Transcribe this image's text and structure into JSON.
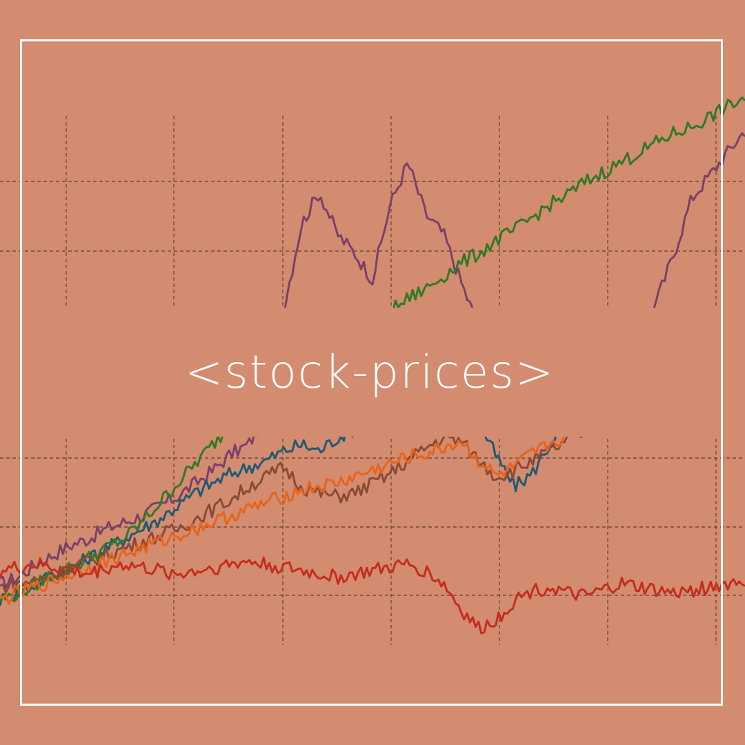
{
  "title": "<stock-prices>",
  "colors": {
    "background": "#d38c6f",
    "frame": "#ffffff",
    "title_text": "#ffffff",
    "grid": "#5a3a2c"
  },
  "chart_data": {
    "type": "line",
    "title": "",
    "xlabel": "",
    "ylabel": "",
    "grid": true,
    "legend": "none",
    "series": [
      {
        "color": "#7b3f6b",
        "values": [
          10,
          14,
          22,
          28,
          34,
          38,
          44,
          48,
          52,
          58,
          64,
          72,
          80,
          90,
          96,
          112,
          180,
          232,
          252,
          226,
          214,
          198,
          244,
          270,
          238,
          226,
          196,
          168,
          140,
          120,
          112,
          108,
          110,
          134,
          160,
          176,
          168,
          184,
          214,
          248,
          262,
          276,
          290
        ]
      },
      {
        "color": "#1f5a73",
        "values": [
          0,
          4,
          10,
          16,
          20,
          26,
          32,
          38,
          44,
          50,
          58,
          66,
          72,
          78,
          82,
          86,
          92,
          96,
          92,
          100,
          106,
          110,
          114,
          118,
          124,
          132,
          128,
          110,
          88,
          70,
          78,
          96,
          108,
          120,
          128,
          136,
          142,
          146,
          150,
          156,
          164,
          170,
          174
        ]
      },
      {
        "color": "#2e7a26",
        "values": [
          0,
          4,
          10,
          16,
          20,
          26,
          32,
          38,
          48,
          60,
          72,
          84,
          96,
          108,
          118,
          128,
          138,
          146,
          150,
          156,
          162,
          170,
          178,
          186,
          192,
          200,
          208,
          214,
          222,
          228,
          236,
          244,
          250,
          258,
          264,
          270,
          276,
          282,
          288,
          292,
          298,
          304,
          310
        ]
      },
      {
        "color": "#8a4a36",
        "values": [
          8,
          10,
          12,
          16,
          20,
          24,
          28,
          32,
          36,
          40,
          44,
          50,
          56,
          62,
          70,
          76,
          82,
          70,
          66,
          64,
          66,
          72,
          78,
          86,
          94,
          100,
          98,
          86,
          76,
          80,
          86,
          92,
          98,
          104,
          110,
          118,
          124,
          130,
          134,
          136,
          140,
          144,
          148
        ]
      },
      {
        "color": "#e8631c",
        "values": [
          0,
          4,
          8,
          12,
          16,
          20,
          24,
          28,
          32,
          36,
          40,
          44,
          48,
          52,
          56,
          60,
          64,
          68,
          70,
          72,
          76,
          80,
          84,
          88,
          90,
          94,
          98,
          86,
          76,
          82,
          90,
          96,
          102,
          106,
          110,
          116,
          112,
          106,
          108,
          112,
          118,
          124,
          130
        ]
      },
      {
        "color": "#c42d1f",
        "values": [
          18,
          20,
          22,
          20,
          18,
          16,
          20,
          22,
          20,
          18,
          16,
          18,
          20,
          22,
          24,
          22,
          20,
          18,
          16,
          14,
          16,
          18,
          20,
          22,
          18,
          10,
          -6,
          -18,
          -12,
          0,
          6,
          8,
          4,
          2,
          6,
          10,
          8,
          6,
          4,
          6,
          8,
          10,
          12
        ]
      }
    ]
  }
}
